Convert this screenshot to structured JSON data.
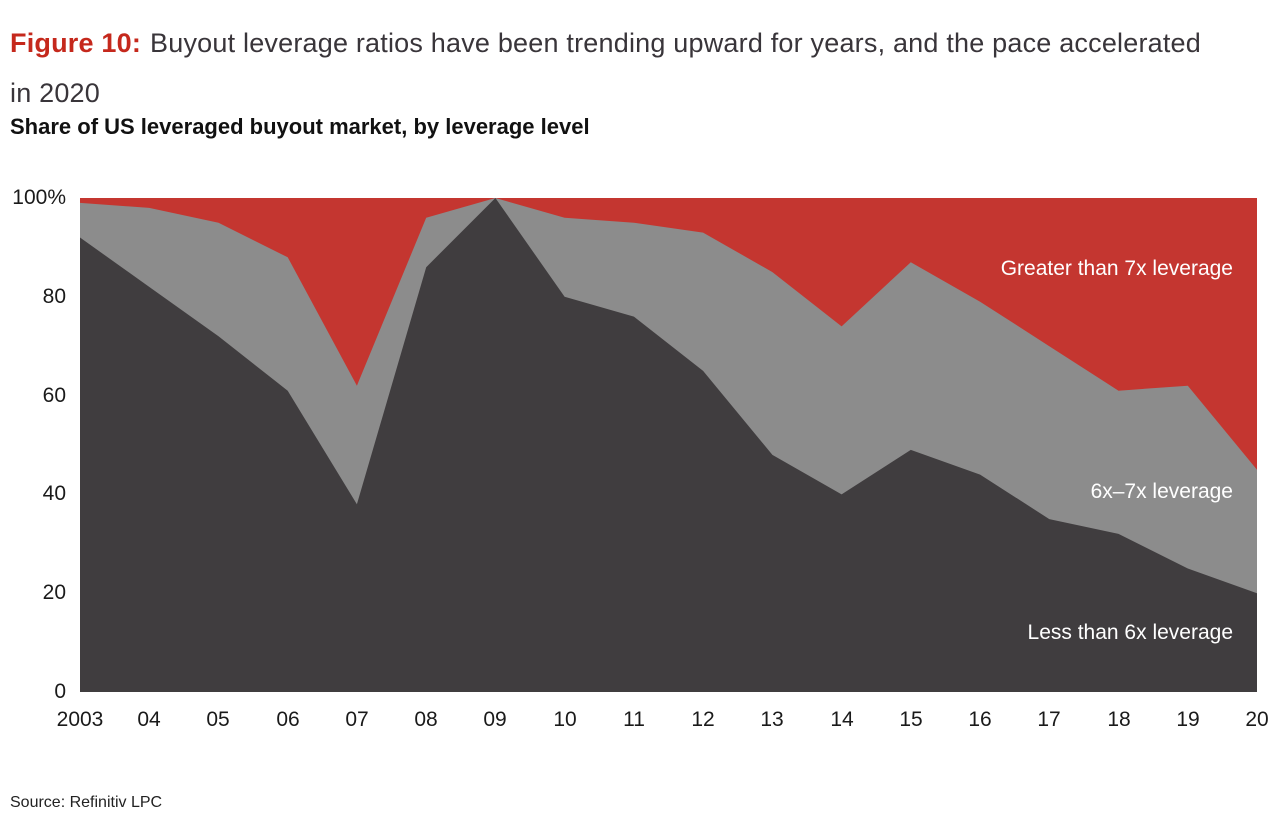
{
  "title": {
    "prefix": "Figure 10:",
    "line1": "Buyout leverage ratios have been trending upward for years, and the pace accelerated",
    "line2": "in 2020"
  },
  "subtitle": "Share of US leveraged buyout market, by leverage level",
  "source_note": "Source: Refinitiv LPC",
  "colors": {
    "dark": "#403d3f",
    "gray": "#8c8c8c",
    "red": "#c43630",
    "title_red": "#c5281c"
  },
  "chart_data": {
    "type": "area",
    "stacked": true,
    "title": "Share of US leveraged buyout market, by leverage level",
    "xlabel": "",
    "ylabel": "",
    "ylim": [
      0,
      100
    ],
    "grid": false,
    "legend_position": "labels inside plot",
    "categories": [
      "2003",
      "04",
      "05",
      "06",
      "07",
      "08",
      "09",
      "10",
      "11",
      "12",
      "13",
      "14",
      "15",
      "16",
      "17",
      "18",
      "19",
      "20"
    ],
    "y_ticks": [
      {
        "label": "100%",
        "value": 100
      },
      {
        "label": "80",
        "value": 80
      },
      {
        "label": "60",
        "value": 60
      },
      {
        "label": "40",
        "value": 40
      },
      {
        "label": "20",
        "value": 20
      },
      {
        "label": "0",
        "value": 0
      }
    ],
    "series": [
      {
        "name": "Less than 6x leverage",
        "color_key": "dark",
        "values": [
          92,
          82,
          72,
          61,
          38,
          86,
          100,
          80,
          76,
          65,
          48,
          40,
          49,
          44,
          35,
          32,
          25,
          20
        ]
      },
      {
        "name": "6x–7x leverage",
        "color_key": "gray",
        "values": [
          7,
          16,
          23,
          27,
          24,
          10,
          0,
          16,
          19,
          28,
          37,
          34,
          38,
          35,
          35,
          29,
          37,
          25
        ]
      },
      {
        "name": "Greater than 7x leverage",
        "color_key": "red",
        "values": [
          1,
          2,
          5,
          12,
          38,
          4,
          0,
          4,
          5,
          7,
          15,
          26,
          13,
          21,
          30,
          39,
          38,
          55
        ]
      }
    ]
  }
}
